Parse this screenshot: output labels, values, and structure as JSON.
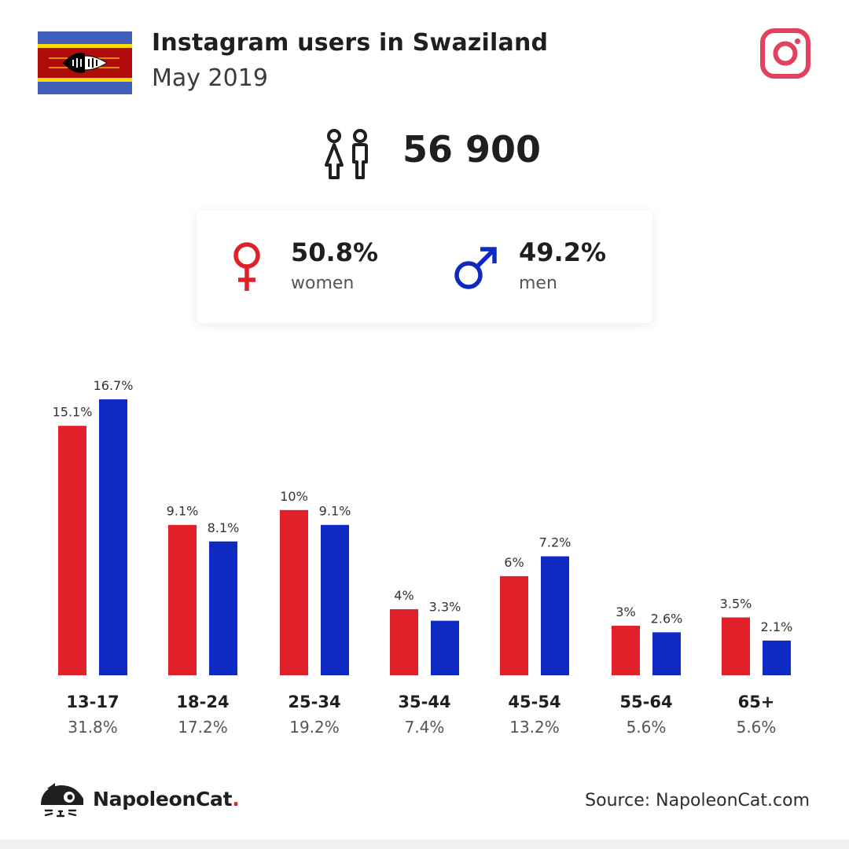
{
  "header": {
    "title": "Instagram users in Swaziland",
    "subtitle": "May 2019"
  },
  "total_users": "56 900",
  "gender": {
    "women": {
      "pct": "50.8%",
      "label": "women"
    },
    "men": {
      "pct": "49.2%",
      "label": "men"
    }
  },
  "colors": {
    "women": "#e02129",
    "men": "#0e2ac2",
    "instagram": "#e4405f"
  },
  "icons": [
    "flag-swaziland-icon",
    "instagram-icon",
    "users-icon",
    "female-symbol-icon",
    "male-symbol-icon",
    "napoleoncat-logo-icon"
  ],
  "chart_data": {
    "type": "bar",
    "categories": [
      "13-17",
      "18-24",
      "25-34",
      "35-44",
      "45-54",
      "55-64",
      "65+"
    ],
    "category_totals": [
      "31.8%",
      "17.2%",
      "19.2%",
      "7.4%",
      "13.2%",
      "5.6%",
      "5.6%"
    ],
    "series": [
      {
        "key": "women",
        "values": [
          15.1,
          9.1,
          10,
          4,
          6,
          3,
          3.5
        ],
        "labels": [
          "15.1%",
          "9.1%",
          "10%",
          "4%",
          "6%",
          "3%",
          "3.5%"
        ]
      },
      {
        "key": "men",
        "values": [
          16.7,
          8.1,
          9.1,
          3.3,
          7.2,
          2.6,
          2.1
        ],
        "labels": [
          "16.7%",
          "8.1%",
          "9.1%",
          "3.3%",
          "7.2%",
          "2.6%",
          "2.1%"
        ]
      }
    ],
    "ylim": [
      0,
      16.7
    ]
  },
  "footer": {
    "brand": "NapoleonCat",
    "brand_dot": ".",
    "source": "Source: NapoleonCat.com"
  }
}
